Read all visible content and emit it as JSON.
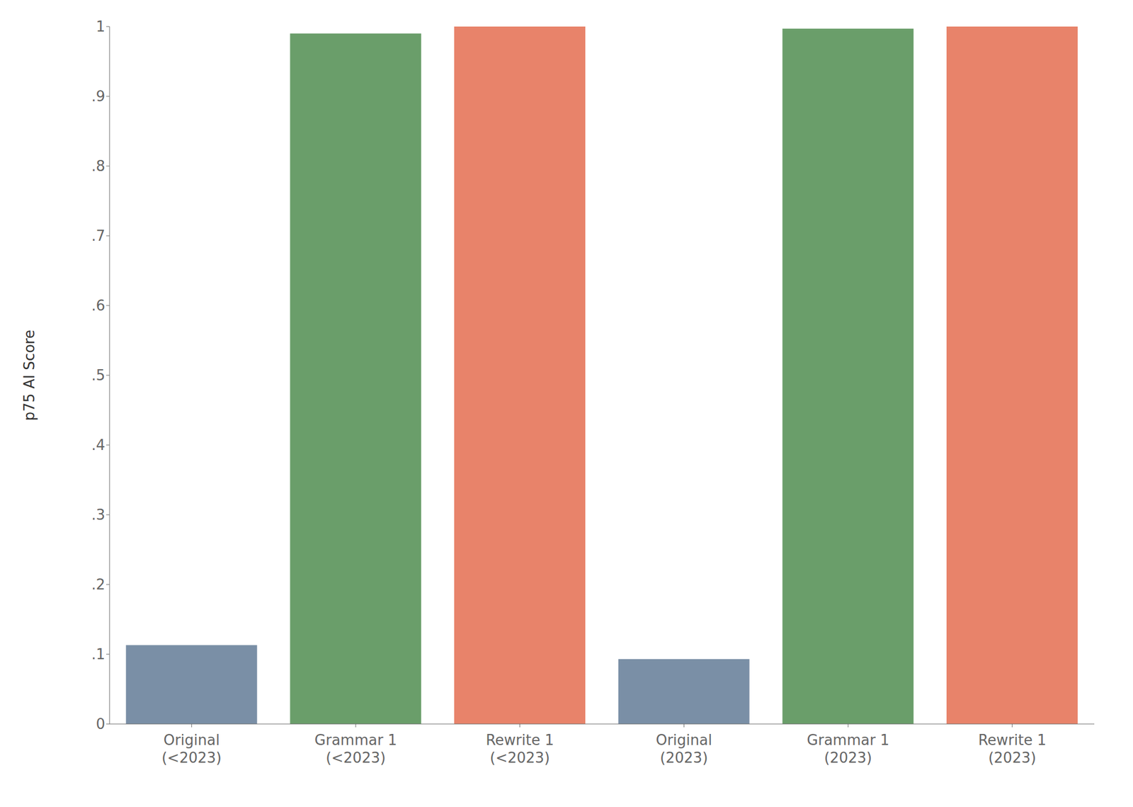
{
  "chart_data": {
    "type": "bar",
    "categories": [
      "Original\n(<2023)",
      "Grammar 1\n(<2023)",
      "Rewrite 1\n(<2023)",
      "Original\n(2023)",
      "Grammar 1\n(2023)",
      "Rewrite 1\n(2023)"
    ],
    "values": [
      0.113,
      0.99,
      1.0,
      0.093,
      0.997,
      1.0
    ],
    "colors": [
      "#7a8fa6",
      "#6a9e6a",
      "#e8836a",
      "#7a8fa6",
      "#6a9e6a",
      "#e8836a"
    ],
    "ylabel": "p75 AI Score",
    "ylim": [
      0,
      1.0
    ],
    "yticks": [
      0,
      {
        "value": 0.1,
        "label": ".1"
      },
      {
        "value": 0.2,
        "label": ".2"
      },
      {
        "value": 0.3,
        "label": ".3"
      },
      {
        "value": 0.4,
        "label": ".4"
      },
      {
        "value": 0.5,
        "label": ".5"
      },
      {
        "value": 0.6,
        "label": ".6"
      },
      {
        "value": 0.7,
        "label": ".7"
      },
      {
        "value": 0.8,
        "label": ".8"
      },
      {
        "value": 0.9,
        "label": ".9"
      },
      1
    ],
    "grid": false
  }
}
